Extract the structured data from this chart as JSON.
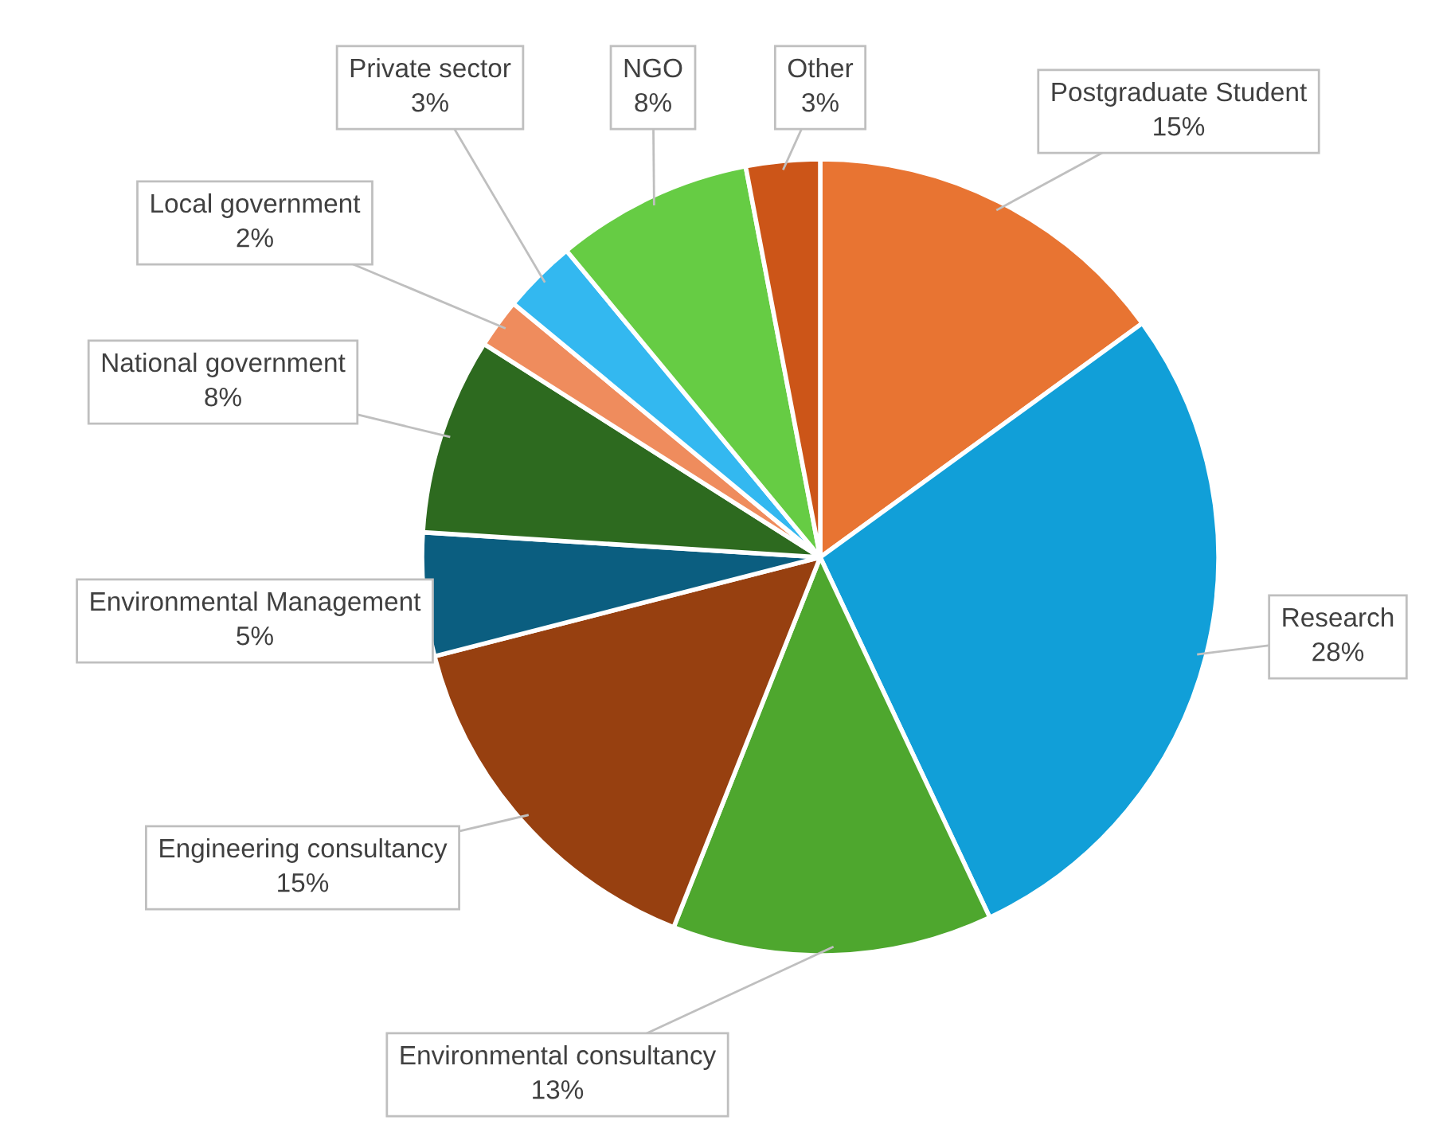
{
  "chart_data": {
    "type": "pie",
    "categories": [
      "Postgraduate Student",
      "Research",
      "Environmental consultancy",
      "Engineering consultancy",
      "Environmental Management",
      "National government",
      "Local government",
      "Private sector",
      "NGO",
      "Other"
    ],
    "values": [
      15,
      28,
      13,
      15,
      5,
      8,
      2,
      3,
      8,
      3
    ],
    "colors": [
      "#e87432",
      "#119fd8",
      "#4ea72e",
      "#974010",
      "#0b5e80",
      "#2d6a1f",
      "#ef8c5d",
      "#33b8f0",
      "#66cc44",
      "#cc5518"
    ],
    "value_labels": [
      "15%",
      "28%",
      "13%",
      "15%",
      "5%",
      "8%",
      "2%",
      "3%",
      "8%",
      "3%"
    ]
  }
}
